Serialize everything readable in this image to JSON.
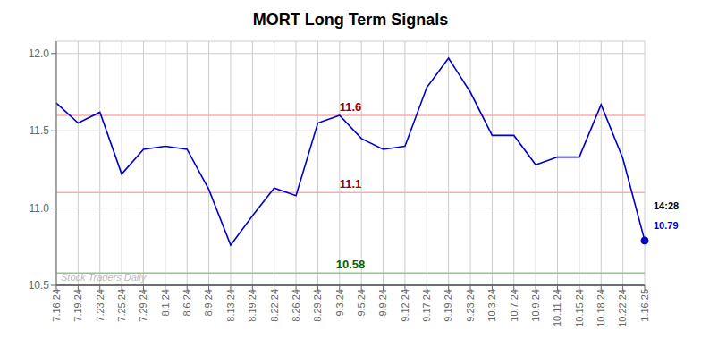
{
  "chart_data": {
    "type": "line",
    "title": "MORT Long Term Signals",
    "categories": [
      "7.16.24",
      "7.19.24",
      "7.23.24",
      "7.25.24",
      "7.29.24",
      "8.1.24",
      "8.6.24",
      "8.9.24",
      "8.13.24",
      "8.19.24",
      "8.22.24",
      "8.26.24",
      "8.29.24",
      "9.3.24",
      "9.5.24",
      "9.9.24",
      "9.12.24",
      "9.17.24",
      "9.19.24",
      "9.23.24",
      "10.3.24",
      "10.7.24",
      "10.9.24",
      "10.11.24",
      "10.15.24",
      "10.18.24",
      "10.22.24",
      "1.16.25"
    ],
    "series": [
      {
        "color": "#0000cc",
        "values": [
          11.68,
          11.55,
          11.62,
          11.22,
          11.38,
          11.4,
          11.38,
          11.12,
          10.76,
          10.95,
          11.13,
          11.08,
          11.55,
          11.6,
          11.45,
          11.38,
          11.4,
          11.78,
          11.97,
          11.75,
          11.47,
          11.47,
          11.28,
          11.33,
          11.33,
          11.67,
          11.32,
          10.79
        ]
      }
    ],
    "ylim": [
      10.5,
      12.08
    ],
    "yticks": [
      10.5,
      {
        "value": 11.0,
        "label": "11.0"
      },
      11.5,
      {
        "value": 12.0,
        "label": "12.0"
      }
    ],
    "grid": true,
    "hlines": [
      {
        "value": 11.6,
        "color": "#ffaaaa",
        "label": "11.6",
        "label_color": "#990000"
      },
      {
        "value": 11.1,
        "color": "#ffaaaa",
        "label": "11.1",
        "label_color": "#990000"
      },
      {
        "value": 10.58,
        "color": "#88cc88",
        "label": "10.58",
        "label_color": "#006600"
      },
      {
        "value": 10.5,
        "color": "#555555"
      }
    ],
    "last_point": {
      "color": "#0000cc",
      "labels": [
        {
          "text": "14:28",
          "color": "#000000"
        },
        {
          "text": "10.79",
          "color": "#0000cc"
        }
      ]
    },
    "watermark": {
      "text": "Stock Traders Daily",
      "color": "#bbbbbb"
    }
  }
}
